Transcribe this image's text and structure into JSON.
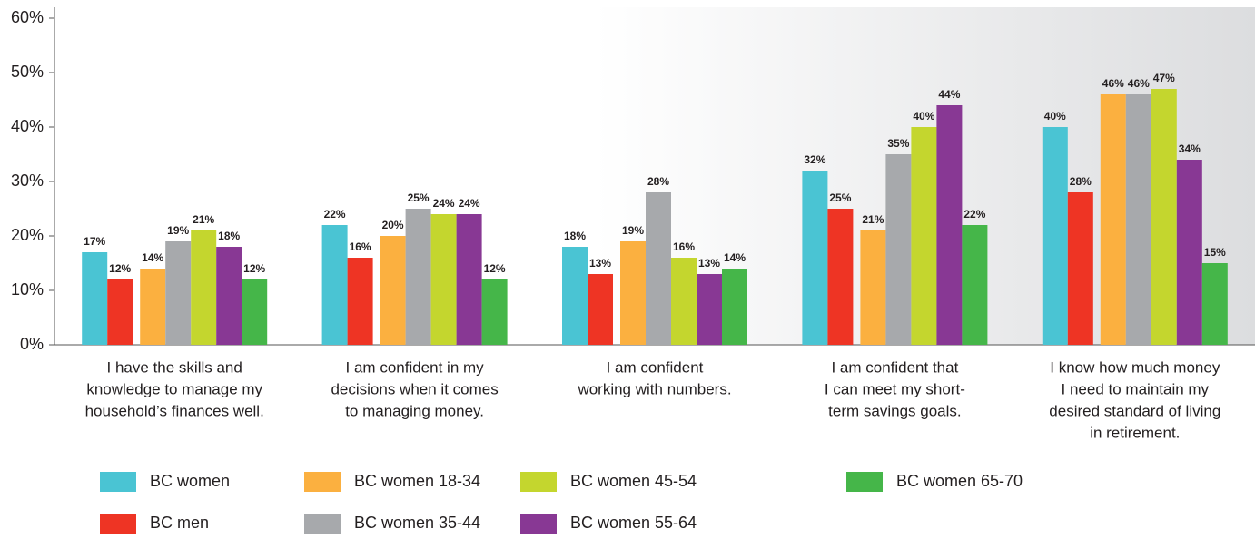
{
  "chart_data": {
    "type": "bar",
    "categories": [
      [
        "I have the skills and",
        "knowledge to manage my",
        "household’s finances well."
      ],
      [
        "I am confident in my",
        "decisions when it comes",
        "to managing money."
      ],
      [
        "I am confident",
        "working with numbers."
      ],
      [
        "I am confident that",
        "I can meet my short-",
        "term savings goals."
      ],
      [
        "I know how much money",
        "I need to maintain my",
        "desired standard of living",
        "in retirement."
      ]
    ],
    "series": [
      {
        "name": "BC women",
        "color": "#4ac4d3",
        "values": [
          17,
          22,
          18,
          32,
          40
        ],
        "value_labels": [
          "17%",
          "22%",
          "18%",
          "32%",
          "40%"
        ]
      },
      {
        "name": "BC men",
        "color": "#ee3424",
        "values": [
          12,
          16,
          13,
          25,
          28
        ],
        "value_labels": [
          "12%",
          "16%",
          "13%",
          "25%",
          "28%"
        ]
      },
      {
        "name": "BC women 18-34",
        "color": "#fbb040",
        "values": [
          14,
          20,
          19,
          21,
          46
        ],
        "value_labels": [
          "14%",
          "20%",
          "19%",
          "21%",
          "46%"
        ]
      },
      {
        "name": "BC women 35-44",
        "color": "#a7a9ac",
        "values": [
          19,
          25,
          28,
          35,
          46
        ],
        "value_labels": [
          "19%",
          "25%",
          "28%",
          "35%",
          "46%"
        ]
      },
      {
        "name": "BC women 45-54",
        "color": "#c4d62e",
        "values": [
          21,
          24,
          16,
          40,
          47
        ],
        "value_labels": [
          "21%",
          "24%",
          "16%",
          "40%",
          "47%"
        ]
      },
      {
        "name": "BC women 55-64",
        "color": "#883894",
        "values": [
          18,
          24,
          13,
          44,
          34
        ],
        "value_labels": [
          "18%",
          "24%",
          "13%",
          "44%",
          "34%"
        ]
      },
      {
        "name": "BC women 65-70",
        "color": "#45b649",
        "values": [
          12,
          12,
          14,
          22,
          15
        ],
        "value_labels": [
          "12%",
          "12%",
          "14%",
          "22%",
          "15%"
        ]
      }
    ],
    "ylim": [
      0,
      60
    ],
    "yticks": [
      {
        "value": 0,
        "label": "0%"
      },
      {
        "value": 10,
        "label": "10%"
      },
      {
        "value": 20,
        "label": "20%"
      },
      {
        "value": 30,
        "label": "30%"
      },
      {
        "value": 40,
        "label": "40%"
      },
      {
        "value": 50,
        "label": "50%"
      },
      {
        "value": 60,
        "label": "60%"
      }
    ],
    "legend": "bottom"
  }
}
